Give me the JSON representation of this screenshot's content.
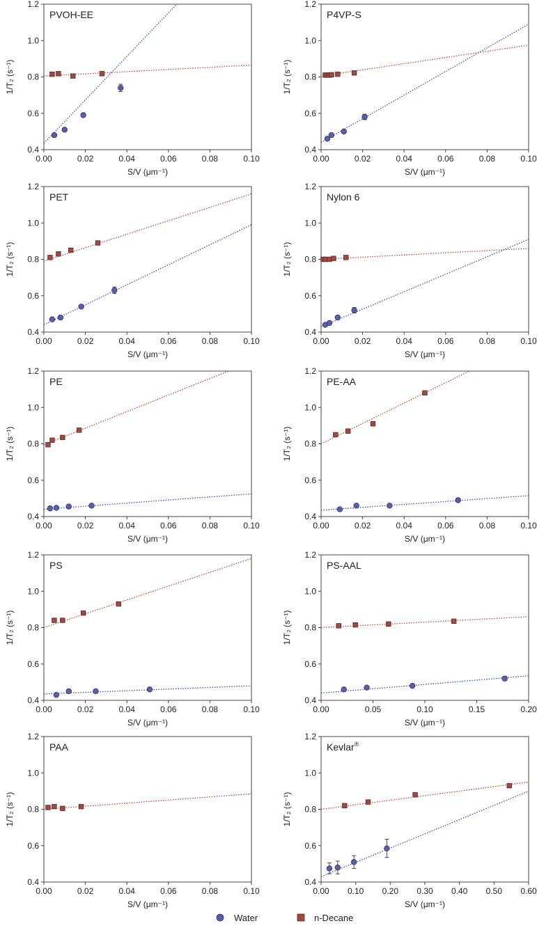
{
  "figure": {
    "legend": {
      "items": [
        {
          "name": "Water",
          "marker": "circle",
          "color": "#5a5fa8"
        },
        {
          "name": "n-Decane",
          "marker": "square",
          "color": "#9c4a44"
        }
      ]
    },
    "colors": {
      "water": "#5a5fa8",
      "water_line": "#3b4fb0",
      "decane": "#9c4a44",
      "decane_line": "#c0473a"
    }
  },
  "chart_data": [
    {
      "type": "scatter",
      "title": "PVOH-EE",
      "xlabel": "S/V (μm⁻¹)",
      "ylabel": "1/T₂ (s⁻¹)",
      "xlim": [
        0,
        0.1
      ],
      "ylim": [
        0.4,
        1.2
      ],
      "xticks": [
        "0.00",
        "0.02",
        "0.04",
        "0.06",
        "0.08",
        "0.10"
      ],
      "yticks": [
        "0.4",
        "0.6",
        "0.8",
        "1.0",
        "1.2"
      ],
      "series": [
        {
          "name": "Water",
          "x": [
            0.005,
            0.01,
            0.019,
            0.037
          ],
          "y": [
            0.48,
            0.51,
            0.59,
            0.74
          ],
          "err": [
            0.005,
            0.005,
            0.008,
            0.02
          ],
          "fit": [
            [
              0,
              0.435
            ],
            [
              0.1,
              1.63
            ]
          ]
        },
        {
          "name": "n-Decane",
          "x": [
            0.004,
            0.007,
            0.014,
            0.028
          ],
          "y": [
            0.815,
            0.818,
            0.805,
            0.818
          ],
          "err": [
            0.005,
            0.005,
            0.005,
            0.005
          ],
          "fit": [
            [
              0,
              0.805
            ],
            [
              0.1,
              0.865
            ]
          ]
        }
      ]
    },
    {
      "type": "scatter",
      "title": "P4VP-S",
      "xlabel": "S/V (μm⁻¹)",
      "ylabel": "1/T₂ (s⁻¹)",
      "xlim": [
        0,
        0.1
      ],
      "ylim": [
        0.4,
        1.2
      ],
      "xticks": [
        "0.00",
        "0.02",
        "0.04",
        "0.06",
        "0.08",
        "0.10"
      ],
      "yticks": [
        "0.4",
        "0.6",
        "0.8",
        "1.0",
        "1.2"
      ],
      "series": [
        {
          "name": "Water",
          "x": [
            0.003,
            0.005,
            0.011,
            0.021
          ],
          "y": [
            0.46,
            0.48,
            0.5,
            0.58
          ],
          "err": [
            0.005,
            0.005,
            0.008,
            0.015
          ],
          "fit": [
            [
              0,
              0.44
            ],
            [
              0.1,
              1.09
            ]
          ]
        },
        {
          "name": "n-Decane",
          "x": [
            0.002,
            0.003,
            0.004,
            0.005,
            0.008,
            0.016
          ],
          "y": [
            0.81,
            0.81,
            0.81,
            0.812,
            0.815,
            0.822
          ],
          "err": [
            0.005,
            0.005,
            0.005,
            0.005,
            0.005,
            0.005
          ],
          "fit": [
            [
              0,
              0.805
            ],
            [
              0.1,
              0.975
            ]
          ]
        }
      ]
    },
    {
      "type": "scatter",
      "title": "PET",
      "xlabel": "S/V (μm⁻¹)",
      "ylabel": "1/T₂ (s⁻¹)",
      "xlim": [
        0,
        0.1
      ],
      "ylim": [
        0.4,
        1.2
      ],
      "xticks": [
        "0.00",
        "0.02",
        "0.04",
        "0.06",
        "0.08",
        "0.10"
      ],
      "yticks": [
        "0.4",
        "0.6",
        "0.8",
        "1.0",
        "1.2"
      ],
      "series": [
        {
          "name": "Water",
          "x": [
            0.004,
            0.008,
            0.018,
            0.034
          ],
          "y": [
            0.47,
            0.48,
            0.54,
            0.63
          ],
          "err": [
            0.005,
            0.008,
            0.008,
            0.018
          ],
          "fit": [
            [
              0,
              0.44
            ],
            [
              0.1,
              0.99
            ]
          ]
        },
        {
          "name": "n-Decane",
          "x": [
            0.003,
            0.007,
            0.013,
            0.026
          ],
          "y": [
            0.81,
            0.83,
            0.85,
            0.89
          ],
          "err": [
            0.005,
            0.005,
            0.005,
            0.008
          ],
          "fit": [
            [
              0,
              0.79
            ],
            [
              0.1,
              1.16
            ]
          ]
        }
      ]
    },
    {
      "type": "scatter",
      "title": "Nylon 6",
      "xlabel": "S/V (μm⁻¹)",
      "ylabel": "1/T₂ (s⁻¹)",
      "xlim": [
        0,
        0.1
      ],
      "ylim": [
        0.4,
        1.2
      ],
      "xticks": [
        "0.00",
        "0.02",
        "0.04",
        "0.06",
        "0.08",
        "0.10"
      ],
      "yticks": [
        "0.4",
        "0.6",
        "0.8",
        "1.0",
        "1.2"
      ],
      "series": [
        {
          "name": "Water",
          "x": [
            0.002,
            0.004,
            0.008,
            0.016
          ],
          "y": [
            0.44,
            0.45,
            0.48,
            0.52
          ],
          "err": [
            0.005,
            0.005,
            0.008,
            0.015
          ],
          "fit": [
            [
              0,
              0.43
            ],
            [
              0.1,
              0.91
            ]
          ]
        },
        {
          "name": "n-Decane",
          "x": [
            0.001,
            0.002,
            0.004,
            0.006,
            0.012
          ],
          "y": [
            0.8,
            0.8,
            0.8,
            0.805,
            0.81
          ],
          "err": [
            0.005,
            0.005,
            0.005,
            0.005,
            0.005
          ],
          "fit": [
            [
              0,
              0.8
            ],
            [
              0.1,
              0.86
            ]
          ]
        }
      ]
    },
    {
      "type": "scatter",
      "title": "PE",
      "xlabel": "S/V (μm⁻¹)",
      "ylabel": "1/T₂ (s⁻¹)",
      "xlim": [
        0,
        0.1
      ],
      "ylim": [
        0.4,
        1.2
      ],
      "xticks": [
        "0.00",
        "0.02",
        "0.04",
        "0.06",
        "0.08",
        "0.10"
      ],
      "yticks": [
        "0.4",
        "0.6",
        "0.8",
        "1.0",
        "1.2"
      ],
      "series": [
        {
          "name": "Water",
          "x": [
            0.003,
            0.006,
            0.012,
            0.023
          ],
          "y": [
            0.445,
            0.448,
            0.455,
            0.46
          ],
          "err": [
            0.005,
            0.005,
            0.005,
            0.008
          ],
          "fit": [
            [
              0,
              0.44
            ],
            [
              0.1,
              0.525
            ]
          ]
        },
        {
          "name": "n-Decane",
          "x": [
            0.002,
            0.004,
            0.009,
            0.017
          ],
          "y": [
            0.795,
            0.82,
            0.835,
            0.875
          ],
          "err": [
            0.008,
            0.008,
            0.005,
            0.005
          ],
          "fit": [
            [
              0,
              0.795
            ],
            [
              0.1,
              1.25
            ]
          ]
        }
      ]
    },
    {
      "type": "scatter",
      "title": "PE-AA",
      "xlabel": "S/V (μm⁻¹)",
      "ylabel": "1/T₂ (s⁻¹)",
      "xlim": [
        0,
        0.1
      ],
      "ylim": [
        0.4,
        1.2
      ],
      "xticks": [
        "0.00",
        "0.02",
        "0.04",
        "0.06",
        "0.08",
        "0.10"
      ],
      "yticks": [
        "0.4",
        "0.6",
        "0.8",
        "1.0",
        "1.2"
      ],
      "series": [
        {
          "name": "Water",
          "x": [
            0.009,
            0.017,
            0.033,
            0.066
          ],
          "y": [
            0.44,
            0.46,
            0.46,
            0.49
          ],
          "err": [
            0.005,
            0.005,
            0.005,
            0.01
          ],
          "fit": [
            [
              0,
              0.435
            ],
            [
              0.1,
              0.515
            ]
          ]
        },
        {
          "name": "n-Decane",
          "x": [
            0.007,
            0.013,
            0.025,
            0.05
          ],
          "y": [
            0.85,
            0.87,
            0.91,
            1.08
          ],
          "err": [
            0.01,
            0.005,
            0.008,
            0.005
          ],
          "fit": [
            [
              0,
              0.8
            ],
            [
              0.1,
              1.36
            ]
          ]
        }
      ]
    },
    {
      "type": "scatter",
      "title": "PS",
      "xlabel": "S/V (μm⁻¹)",
      "ylabel": "1/T₂ (s⁻¹)",
      "xlim": [
        0,
        0.1
      ],
      "ylim": [
        0.4,
        1.2
      ],
      "xticks": [
        "0.00",
        "0.02",
        "0.04",
        "0.06",
        "0.08",
        "0.10"
      ],
      "yticks": [
        "0.4",
        "0.6",
        "0.8",
        "1.0",
        "1.2"
      ],
      "series": [
        {
          "name": "Water",
          "x": [
            0.006,
            0.012,
            0.025,
            0.051
          ],
          "y": [
            0.43,
            0.45,
            0.45,
            0.46
          ],
          "err": [
            0.005,
            0.005,
            0.005,
            0.008
          ],
          "fit": [
            [
              0,
              0.435
            ],
            [
              0.1,
              0.48
            ]
          ]
        },
        {
          "name": "n-Decane",
          "x": [
            0.005,
            0.009,
            0.019,
            0.036
          ],
          "y": [
            0.84,
            0.84,
            0.88,
            0.93
          ],
          "err": [
            0.008,
            0.008,
            0.005,
            0.005
          ],
          "fit": [
            [
              0,
              0.8
            ],
            [
              0.1,
              1.18
            ]
          ]
        }
      ]
    },
    {
      "type": "scatter",
      "title": "PS-AAL",
      "xlabel": "S/V (μm⁻¹)",
      "ylabel": "1/T₂ (s⁻¹)",
      "xlim": [
        0,
        0.2
      ],
      "ylim": [
        0.4,
        1.2
      ],
      "xticks": [
        "0.00",
        "0.05",
        "0.10",
        "0.15",
        "0.20"
      ],
      "yticks": [
        "0.4",
        "0.6",
        "0.8",
        "1.0",
        "1.2"
      ],
      "series": [
        {
          "name": "Water",
          "x": [
            0.022,
            0.044,
            0.088,
            0.177
          ],
          "y": [
            0.46,
            0.47,
            0.48,
            0.52
          ],
          "err": [
            0.005,
            0.005,
            0.008,
            0.012
          ],
          "fit": [
            [
              0,
              0.44
            ],
            [
              0.2,
              0.535
            ]
          ]
        },
        {
          "name": "n-Decane",
          "x": [
            0.017,
            0.033,
            0.065,
            0.128
          ],
          "y": [
            0.81,
            0.815,
            0.82,
            0.835
          ],
          "err": [
            0.008,
            0.005,
            0.005,
            0.005
          ],
          "fit": [
            [
              0,
              0.8
            ],
            [
              0.2,
              0.86
            ]
          ]
        }
      ]
    },
    {
      "type": "scatter",
      "title": "PAA",
      "xlabel": "S/V (μm⁻¹)",
      "ylabel": "1/T₂ (s⁻¹)",
      "xlim": [
        0,
        0.1
      ],
      "ylim": [
        0.4,
        1.2
      ],
      "xticks": [
        "0.00",
        "0.02",
        "0.04",
        "0.06",
        "0.08",
        "0.10"
      ],
      "yticks": [
        "0.4",
        "0.6",
        "0.8",
        "1.0",
        "1.2"
      ],
      "series": [
        {
          "name": "n-Decane",
          "x": [
            0.002,
            0.005,
            0.009,
            0.018
          ],
          "y": [
            0.81,
            0.815,
            0.805,
            0.815
          ],
          "err": [
            0.008,
            0.005,
            0.005,
            0.005
          ],
          "fit": [
            [
              0,
              0.8
            ],
            [
              0.1,
              0.885
            ]
          ]
        }
      ]
    },
    {
      "type": "scatter",
      "title": "Kevlar",
      "title_sup": "®",
      "xlabel": "S/V (μm⁻¹)",
      "ylabel": "1/T₂ (s⁻¹)",
      "xlim": [
        0,
        0.6
      ],
      "ylim": [
        0.4,
        1.2
      ],
      "xticks": [
        "0.00",
        "0.10",
        "0.20",
        "0.30",
        "0.40",
        "0.50",
        "0.60"
      ],
      "yticks": [
        "0.4",
        "0.6",
        "0.8",
        "1.0",
        "1.2"
      ],
      "series": [
        {
          "name": "Water",
          "x": [
            0.024,
            0.048,
            0.095,
            0.19
          ],
          "y": [
            0.475,
            0.48,
            0.51,
            0.585
          ],
          "err": [
            0.03,
            0.035,
            0.035,
            0.05
          ],
          "fit": [
            [
              0,
              0.43
            ],
            [
              0.6,
              0.9
            ]
          ]
        },
        {
          "name": "n-Decane",
          "x": [
            0.068,
            0.136,
            0.272,
            0.544
          ],
          "y": [
            0.82,
            0.84,
            0.88,
            0.93
          ],
          "err": [
            0.008,
            0.008,
            0.008,
            0.008
          ],
          "fit": [
            [
              0,
              0.8
            ],
            [
              0.6,
              0.95
            ]
          ]
        }
      ]
    }
  ]
}
